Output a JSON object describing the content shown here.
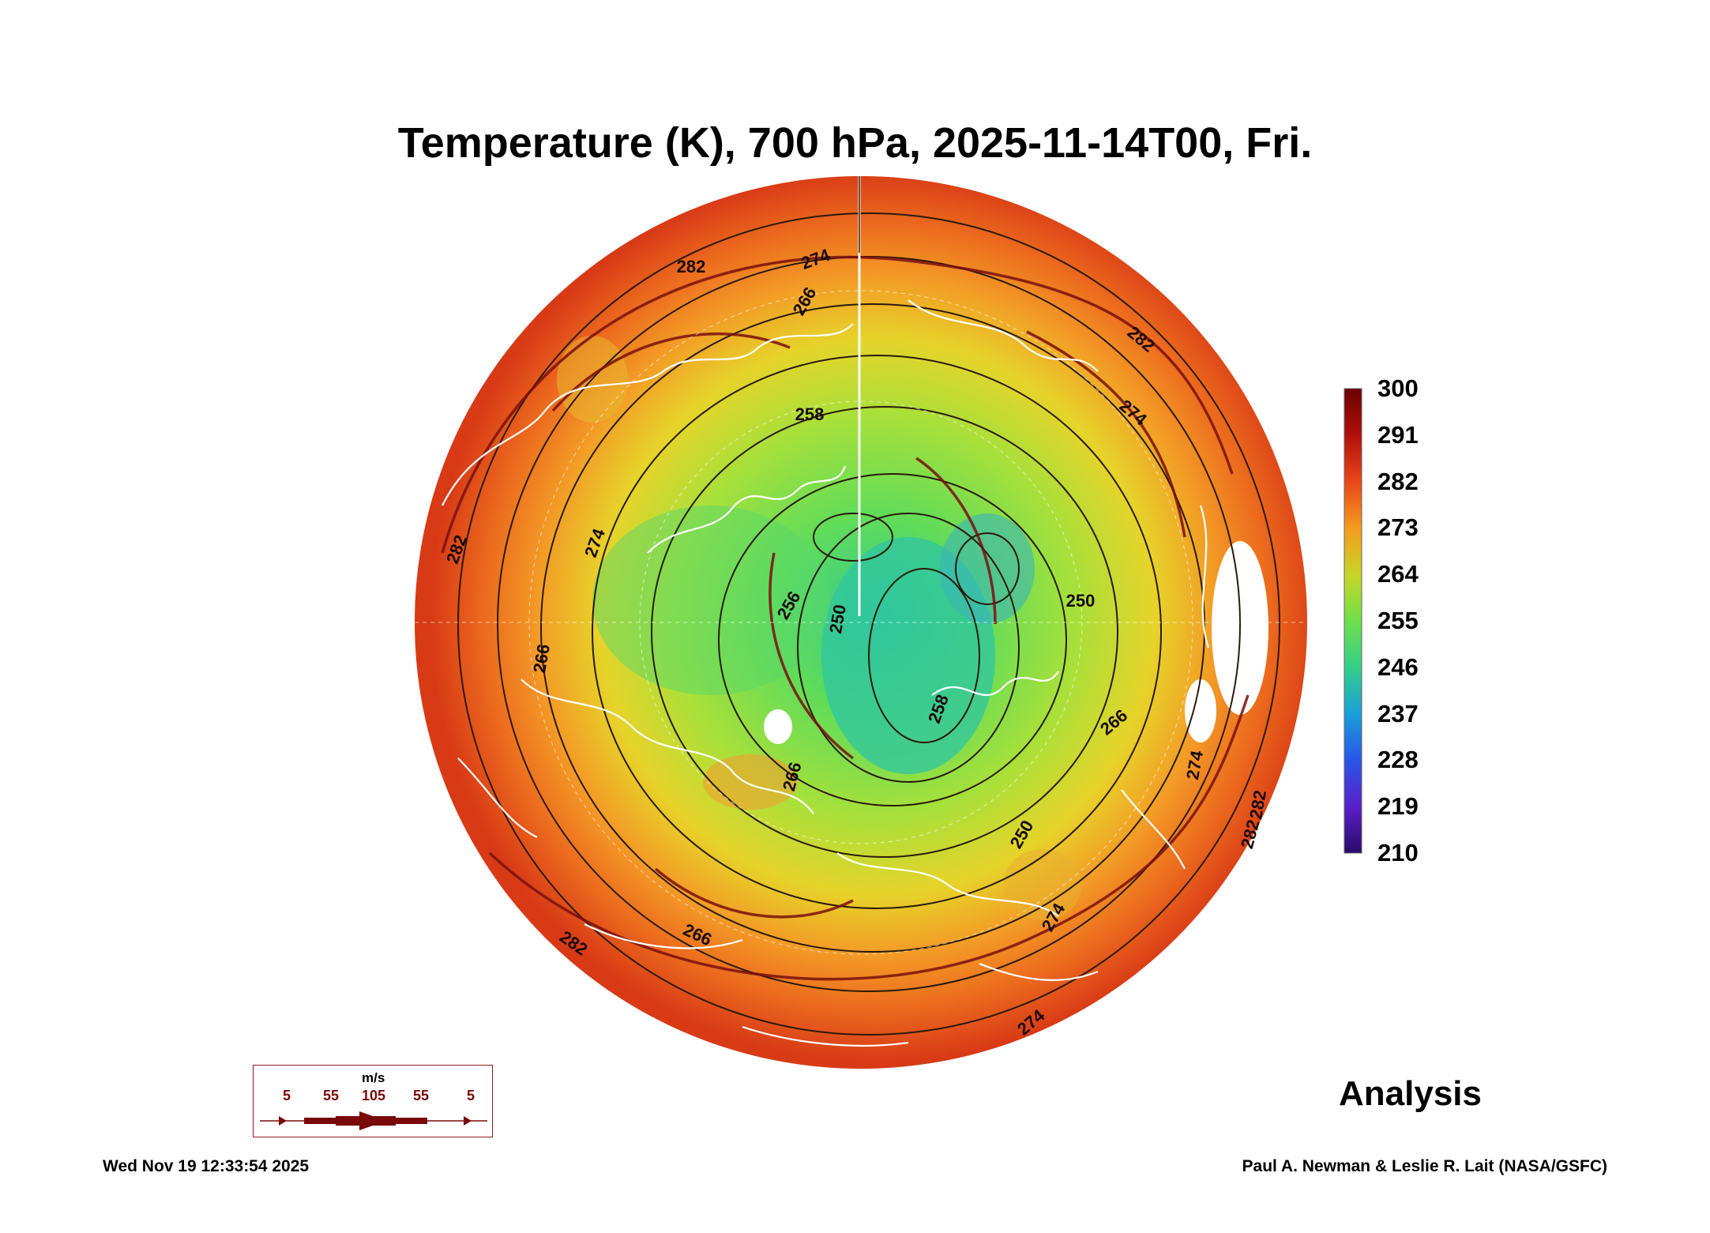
{
  "title": "Temperature (K), 700 hPa, 2025-11-14T00, Fri.",
  "colorbar": {
    "labels": [
      "300",
      "291",
      "282",
      "273",
      "264",
      "255",
      "246",
      "237",
      "228",
      "219",
      "210"
    ],
    "stops": [
      "#6b0000",
      "#b0100a",
      "#e8461a",
      "#f59b1f",
      "#c8d626",
      "#6fe04a",
      "#33cf8a",
      "#1a9fd8",
      "#2a55e8",
      "#5a1fc8",
      "#2a0a6a"
    ]
  },
  "contours": {
    "labels": [
      "282",
      "274",
      "266",
      "258",
      "250",
      "256",
      "266",
      "282",
      "274",
      "266",
      "250",
      "258",
      "282",
      "274",
      "282",
      "274",
      "282",
      "266",
      "274",
      "282",
      "250",
      "266",
      "274"
    ]
  },
  "legend": {
    "unit": "m/s",
    "values": [
      "5",
      "55",
      "105",
      "55",
      "5"
    ]
  },
  "label": "Analysis",
  "timestamp": "Wed Nov 19 12:33:54 2025",
  "credit": "Paul A. Newman & Leslie R. Lait (NASA/GSFC)"
}
